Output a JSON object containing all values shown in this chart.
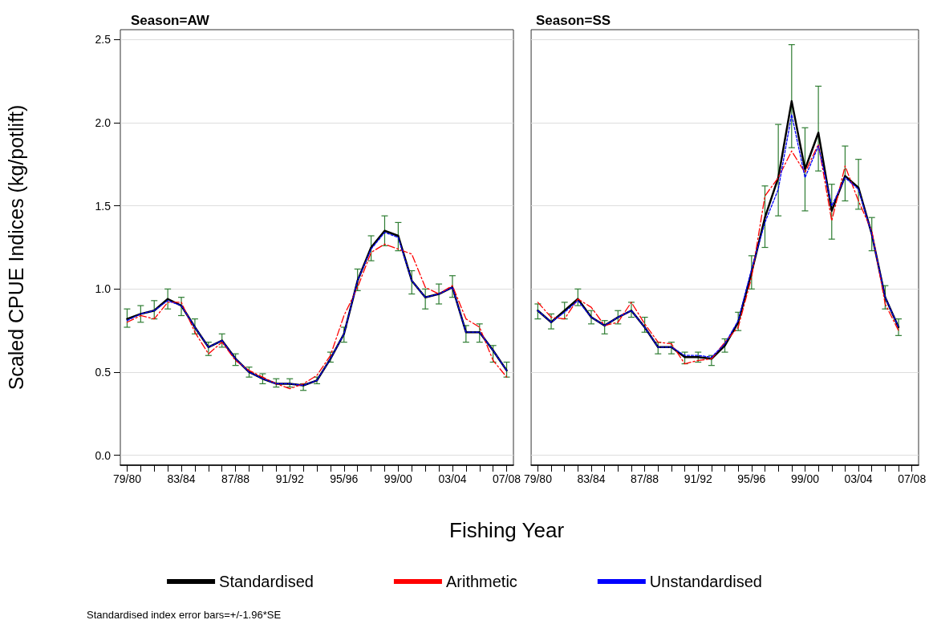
{
  "chart_data": [
    {
      "type": "line",
      "title": "Season=AW",
      "xlabel": "Fishing Year",
      "ylabel": "Scaled CPUE Indices (kg/potlift)",
      "annotations": [
        "Standardised index error bars=+/-1.96*SE"
      ],
      "categories": [
        "79/80",
        null,
        null,
        null,
        "83/84",
        null,
        null,
        null,
        "87/88",
        null,
        null,
        null,
        "91/92",
        null,
        null,
        null,
        "95/96",
        null,
        null,
        null,
        "99/00",
        null,
        null,
        null,
        "03/04",
        null,
        null,
        null,
        "07/08"
      ],
      "ylim": [
        -0.06,
        2.56
      ],
      "yticks": [
        {
          "value": 0,
          "label": "0.0"
        },
        0.5,
        {
          "value": 1,
          "label": "1.0"
        },
        1.5,
        {
          "value": 2,
          "label": "2.0"
        },
        2.5
      ],
      "grid": "y",
      "legend": "bottom",
      "marker": "none",
      "series": [
        {
          "name": "Standardised",
          "color": "#000000",
          "line_style": "solid",
          "values": [
            0.82,
            0.85,
            0.87,
            0.94,
            0.9,
            0.77,
            0.65,
            0.69,
            0.58,
            0.5,
            0.46,
            0.43,
            0.43,
            0.42,
            0.45,
            0.58,
            0.73,
            1.05,
            1.25,
            1.35,
            1.32,
            1.05,
            0.95,
            0.97,
            1.01,
            0.74,
            0.74,
            0.63,
            0.51
          ],
          "errors": [
            [
              0.77,
              0.88
            ],
            [
              0.8,
              0.9
            ],
            [
              0.82,
              0.93
            ],
            [
              0.88,
              1.0
            ],
            [
              0.84,
              0.95
            ],
            [
              0.73,
              0.82
            ],
            [
              0.6,
              0.68
            ],
            [
              0.65,
              0.73
            ],
            [
              0.54,
              0.61
            ],
            [
              0.47,
              0.53
            ],
            [
              0.43,
              0.49
            ],
            [
              0.41,
              0.46
            ],
            [
              0.41,
              0.46
            ],
            [
              0.39,
              0.43
            ],
            [
              0.43,
              0.47
            ],
            [
              0.56,
              0.62
            ],
            [
              0.68,
              0.77
            ],
            [
              0.99,
              1.12
            ],
            [
              1.17,
              1.32
            ],
            [
              1.26,
              1.44
            ],
            [
              1.23,
              1.4
            ],
            [
              0.97,
              1.11
            ],
            [
              0.88,
              1.0
            ],
            [
              0.91,
              1.03
            ],
            [
              0.95,
              1.08
            ],
            [
              0.68,
              0.78
            ],
            [
              0.68,
              0.79
            ],
            [
              0.56,
              0.66
            ],
            [
              0.47,
              0.56
            ]
          ]
        },
        {
          "name": "Arithmetic",
          "color": "#ff0000",
          "line_style": "dashed",
          "values": [
            0.8,
            0.84,
            0.82,
            0.92,
            0.92,
            0.74,
            0.61,
            0.68,
            0.57,
            0.51,
            0.47,
            0.43,
            0.4,
            0.43,
            0.48,
            0.6,
            0.84,
            1.01,
            1.22,
            1.27,
            1.24,
            1.21,
            1.01,
            0.97,
            1.02,
            0.82,
            0.77,
            0.57,
            0.47
          ]
        },
        {
          "name": "Unstandardised",
          "color": "#0000ff",
          "line_style": "dotted",
          "values": [
            0.81,
            0.85,
            0.87,
            0.93,
            0.9,
            0.77,
            0.65,
            0.69,
            0.58,
            0.5,
            0.46,
            0.43,
            0.43,
            0.42,
            0.45,
            0.58,
            0.73,
            1.05,
            1.24,
            1.34,
            1.31,
            1.05,
            0.95,
            0.97,
            1.01,
            0.74,
            0.74,
            0.63,
            0.51
          ]
        }
      ]
    },
    {
      "type": "line",
      "title": "Season=SS",
      "categories": [
        "79/80",
        null,
        null,
        null,
        "83/84",
        null,
        null,
        null,
        "87/88",
        null,
        null,
        null,
        "91/92",
        null,
        null,
        null,
        "95/96",
        null,
        null,
        null,
        "99/00",
        null,
        null,
        null,
        "03/04",
        null,
        null,
        null,
        "07/08"
      ],
      "ylim": [
        -0.06,
        2.56
      ],
      "yticks": [
        0,
        0.5,
        1,
        1.5,
        2,
        2.5
      ],
      "grid": "y",
      "tick_labels": "x",
      "marker": "none",
      "series": [
        {
          "color": "#000000",
          "line_style": "solid",
          "values": [
            0.87,
            0.8,
            0.87,
            0.94,
            0.83,
            0.78,
            0.83,
            0.87,
            0.77,
            0.65,
            0.65,
            0.59,
            0.59,
            0.58,
            0.66,
            0.8,
            1.1,
            1.43,
            1.67,
            2.13,
            1.72,
            1.94,
            1.47,
            1.68,
            1.61,
            1.33,
            0.95,
            0.77,
            null
          ],
          "errors": [
            [
              0.82,
              0.91
            ],
            [
              0.76,
              0.85
            ],
            [
              0.82,
              0.92
            ],
            [
              0.9,
              1.0
            ],
            [
              0.79,
              0.87
            ],
            [
              0.73,
              0.81
            ],
            [
              0.79,
              0.87
            ],
            [
              0.83,
              0.92
            ],
            [
              0.74,
              0.83
            ],
            [
              0.61,
              0.68
            ],
            [
              0.61,
              0.68
            ],
            [
              0.55,
              0.62
            ],
            [
              0.56,
              0.62
            ],
            [
              0.54,
              0.6
            ],
            [
              0.62,
              0.7
            ],
            [
              0.75,
              0.86
            ],
            [
              1.0,
              1.2
            ],
            [
              1.25,
              1.62
            ],
            [
              1.44,
              1.99
            ],
            [
              1.85,
              2.47
            ],
            [
              1.47,
              1.97
            ],
            [
              1.71,
              2.22
            ],
            [
              1.3,
              1.63
            ],
            [
              1.53,
              1.86
            ],
            [
              1.48,
              1.78
            ],
            [
              1.23,
              1.43
            ],
            [
              0.88,
              1.02
            ],
            [
              0.72,
              0.82
            ],
            null
          ]
        },
        {
          "color": "#ff0000",
          "line_style": "dashed",
          "values": [
            0.92,
            0.83,
            0.82,
            0.94,
            0.89,
            0.78,
            0.8,
            0.92,
            0.79,
            0.68,
            0.67,
            0.55,
            0.57,
            0.58,
            0.68,
            0.77,
            1.07,
            1.56,
            1.67,
            1.83,
            1.7,
            1.87,
            1.41,
            1.74,
            1.53,
            1.35,
            0.91,
            0.75,
            null
          ]
        },
        {
          "color": "#0000ff",
          "line_style": "dotted",
          "values": [
            0.87,
            0.8,
            0.86,
            0.93,
            0.83,
            0.78,
            0.83,
            0.87,
            0.77,
            0.65,
            0.65,
            0.6,
            0.6,
            0.59,
            0.67,
            0.81,
            1.12,
            1.4,
            1.6,
            2.05,
            1.67,
            1.86,
            1.5,
            1.67,
            1.6,
            1.33,
            0.95,
            0.77,
            null
          ]
        }
      ]
    }
  ]
}
